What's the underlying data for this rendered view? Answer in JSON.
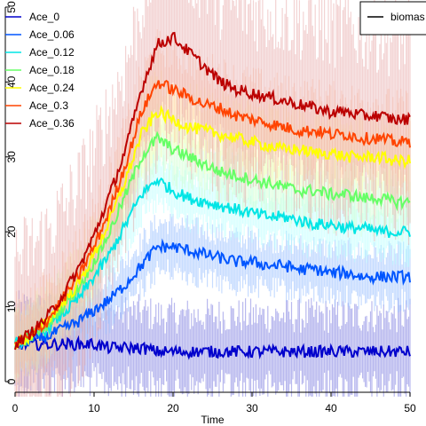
{
  "chart_data": {
    "type": "line",
    "title": "",
    "xlabel": "Time",
    "ylabel": "",
    "xlim": [
      0,
      50
    ],
    "ylim": [
      0,
      50
    ],
    "x_ticks": [
      0,
      10,
      20,
      30,
      40,
      50
    ],
    "y_ticks": [
      0,
      10,
      20,
      30,
      40,
      50
    ],
    "x_tick_labels": [
      "0",
      "10",
      "20",
      "30",
      "40",
      "50"
    ],
    "y_tick_labels": [
      "0",
      "10",
      "20",
      "30",
      "40",
      "50"
    ],
    "grid": false,
    "legend_position": "top-left",
    "series_legend_labels": [
      "Ace_0",
      "Ace_0.06",
      "Ace_0.12",
      "Ace_0.18",
      "Ace_0.24",
      "Ace_0.3",
      "Ace_0.36"
    ],
    "secondary_legend_label": "biomas",
    "secondary_legend_position": "top-right",
    "x": [
      0,
      2,
      4,
      6,
      8,
      10,
      12,
      14,
      16,
      18,
      20,
      22,
      24,
      26,
      28,
      30,
      32,
      34,
      36,
      38,
      40,
      42,
      44,
      46,
      48,
      50
    ],
    "series": [
      {
        "name": "Ace_0",
        "color": "#0000cc",
        "band_color": "#8080e0",
        "values": [
          5,
          5,
          5,
          5,
          5,
          5,
          4.5,
          4.5,
          4.5,
          4,
          4,
          4,
          4,
          4,
          4,
          4,
          4,
          4,
          4,
          4,
          4,
          4,
          4,
          4,
          4,
          4
        ]
      },
      {
        "name": "Ace_0.06",
        "color": "#0055ff",
        "band_color": "#99c0ff",
        "values": [
          5,
          5.5,
          6,
          7,
          8,
          9.5,
          11,
          13,
          15.5,
          18,
          18,
          17.5,
          17,
          16.5,
          16,
          16,
          15.5,
          15.5,
          15,
          15,
          14.5,
          14.5,
          14,
          14,
          14,
          14
        ]
      },
      {
        "name": "Ace_0.12",
        "color": "#00e5e5",
        "band_color": "#b3ffff",
        "values": [
          5,
          6,
          7,
          9,
          11,
          14,
          17,
          21,
          25,
          27,
          25.5,
          24.5,
          24,
          23.5,
          23,
          22.5,
          22,
          22,
          21.5,
          21,
          21,
          20.5,
          20.5,
          20,
          20,
          20
        ]
      },
      {
        "name": "Ace_0.18",
        "color": "#66ff66",
        "band_color": "#ccffcc",
        "values": [
          5,
          6,
          7.5,
          10,
          12.5,
          16,
          20,
          25,
          30,
          32.5,
          31,
          30,
          29,
          28,
          27.5,
          27,
          26.5,
          26,
          25.5,
          25.5,
          25,
          25,
          24.5,
          24.5,
          24,
          24
        ]
      },
      {
        "name": "Ace_0.24",
        "color": "#ffff00",
        "band_color": "#ffffb3",
        "values": [
          5,
          6,
          8,
          10.5,
          13,
          17,
          21.5,
          27,
          33,
          36,
          35,
          34,
          33.5,
          33,
          32.5,
          32,
          31.5,
          31,
          31,
          30.5,
          30.5,
          30,
          30,
          30,
          29.5,
          29.5
        ]
      },
      {
        "name": "Ace_0.3",
        "color": "#ff4400",
        "band_color": "#ffc0a0",
        "values": [
          5,
          6,
          8,
          11,
          14,
          18,
          23,
          29,
          36,
          40,
          39,
          38,
          37,
          36.5,
          35.5,
          35,
          34.5,
          34,
          33.5,
          33.5,
          33,
          33,
          32.5,
          32.5,
          32,
          32
        ]
      },
      {
        "name": "Ace_0.36",
        "color": "#bb0000",
        "band_color": "#e8a8a8",
        "values": [
          5,
          6.5,
          8.5,
          11.5,
          15,
          19.5,
          25,
          31,
          39,
          45,
          46,
          44,
          42,
          40,
          39,
          38.5,
          38,
          37.5,
          37,
          36.5,
          36,
          36,
          35.5,
          35.5,
          35,
          35
        ]
      }
    ]
  }
}
